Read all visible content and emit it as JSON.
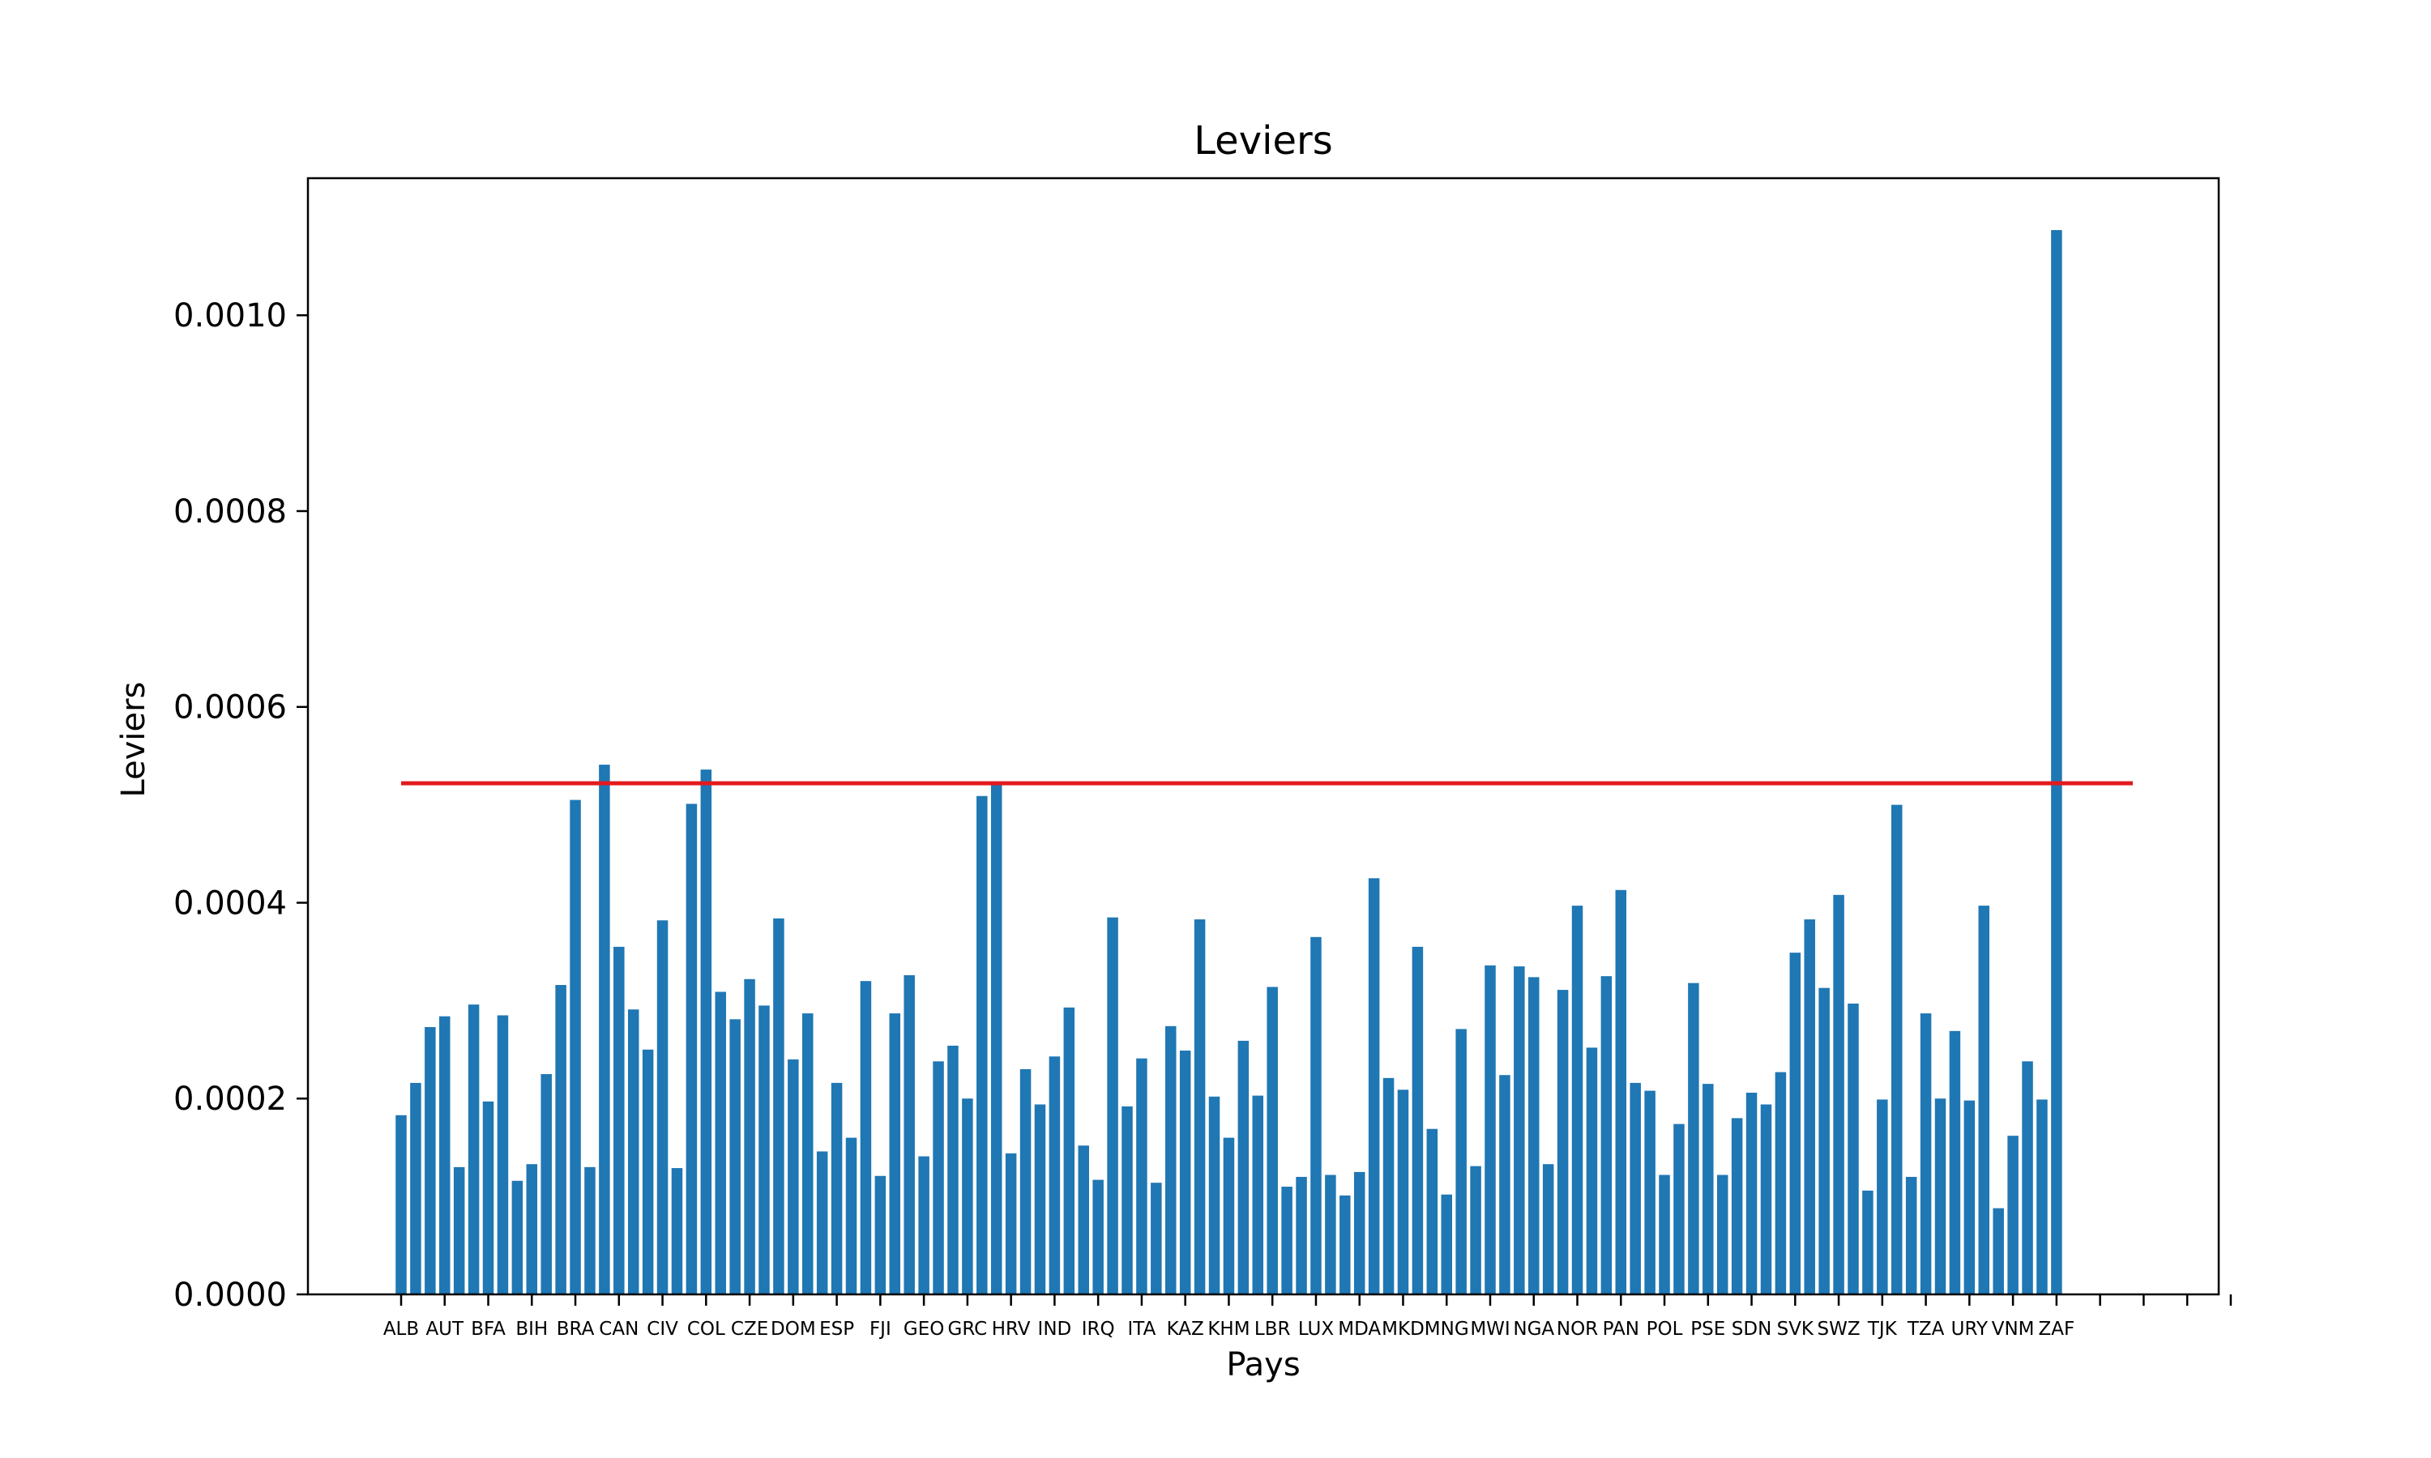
{
  "chart_data": {
    "type": "bar",
    "title": "Leviers",
    "xlabel": "Pays",
    "ylabel": "Leviers",
    "ylim": [
      0,
      0.00114
    ],
    "yticks": [
      0,
      0.0002,
      0.0004,
      0.0006,
      0.0008,
      0.001
    ],
    "ytick_labels": [
      "0.0000",
      "0.0002",
      "0.0004",
      "0.0006",
      "0.0008",
      "0.0010"
    ],
    "grid": false,
    "bar_color": "#1f77b4",
    "threshold": {
      "value": 0.000522,
      "color": "#e31a1c"
    },
    "x_slot_count": 127,
    "xtick_labels": [
      "ALB",
      "AUT",
      "BFA",
      "BIH",
      "BRA",
      "CAN",
      "CIV",
      "COL",
      "CZE",
      "DOM",
      "ESP",
      "FJI",
      "GEO",
      "GRC",
      "HRV",
      "IND",
      "IRQ",
      "ITA",
      "KAZ",
      "KHM",
      "LBR",
      "LUX",
      "MDA",
      "MKD",
      "MNG",
      "MWI",
      "NGA",
      "NOR",
      "PAN",
      "POL",
      "PSE",
      "SDN",
      "SVK",
      "SWZ",
      "TJK",
      "TZA",
      "URY",
      "VNM",
      "ZAF",
      "",
      "",
      "",
      ""
    ],
    "values": [
      0.000183,
      0.000216,
      0.000273,
      0.000284,
      0.00013,
      0.000296,
      0.000197,
      0.000285,
      0.000116,
      0.000133,
      0.000225,
      0.000316,
      0.000505,
      0.00013,
      0.000541,
      0.000355,
      0.000291,
      0.00025,
      0.000382,
      0.000129,
      0.000501,
      0.000536,
      0.000309,
      0.000281,
      0.000322,
      0.000295,
      0.000384,
      0.00024,
      0.000287,
      0.000146,
      0.000216,
      0.00016,
      0.00032,
      0.000121,
      0.000287,
      0.000326,
      0.000141,
      0.000238,
      0.000254,
      0.0002,
      0.000509,
      0.000523,
      0.000144,
      0.00023,
      0.000194,
      0.000243,
      0.000293,
      0.000152,
      0.000117,
      0.000385,
      0.000192,
      0.000241,
      0.000114,
      0.000274,
      0.000249,
      0.000383,
      0.000202,
      0.00016,
      0.000259,
      0.000203,
      0.000314,
      0.00011,
      0.00012,
      0.000365,
      0.000122,
      0.000101,
      0.000125,
      0.000425,
      0.000221,
      0.000209,
      0.000355,
      0.000169,
      0.000102,
      0.000271,
      0.000131,
      0.000336,
      0.000224,
      0.000335,
      0.000324,
      0.000133,
      0.000311,
      0.000397,
      0.000252,
      0.000325,
      0.000413,
      0.000216,
      0.000208,
      0.000122,
      0.000174,
      0.000318,
      0.000215,
      0.000122,
      0.00018,
      0.000206,
      0.000194,
      0.000227,
      0.000349,
      0.000383,
      0.000313,
      0.000408,
      0.000297,
      0.000106,
      0.000199,
      0.0005,
      0.00012,
      0.000287,
      0.0002,
      0.000269,
      0.000198,
      0.000397,
      8.8e-05,
      0.000162,
      0.000238,
      0.000199,
      0.001087
    ]
  }
}
